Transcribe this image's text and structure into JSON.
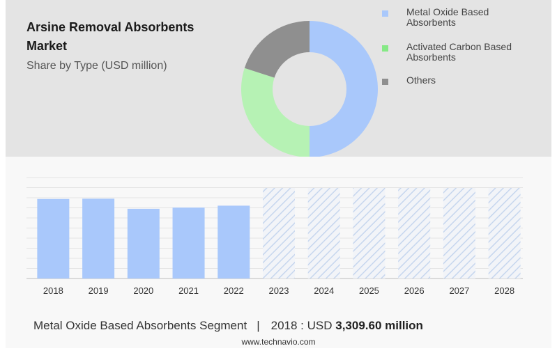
{
  "header": {
    "title": "Arsine Removal Absorbents Market",
    "subtitle": "Share by Type (USD million)"
  },
  "donut": {
    "segments": [
      {
        "label": "Metal Oxide Based Absorbents",
        "share": 50,
        "color": "#a9c8fb"
      },
      {
        "label": "Activated Carbon Based Absorbents",
        "share": 30,
        "color": "#b6f2b4"
      },
      {
        "label": "Others",
        "share": 20,
        "color": "#8f8f8f"
      }
    ]
  },
  "legend": {
    "items": [
      {
        "label": "Metal Oxide Based Absorbents",
        "color": "#a9c8fb"
      },
      {
        "label": "Activated Carbon Based Absorbents",
        "color": "#86e986"
      },
      {
        "label": "Others",
        "color": "#8f8f8f"
      }
    ]
  },
  "chart_data": {
    "type": "bar",
    "categories": [
      "2018",
      "2019",
      "2020",
      "2021",
      "2022",
      "2023",
      "2024",
      "2025",
      "2026",
      "2027",
      "2028"
    ],
    "values": [
      3309.6,
      3320,
      2900,
      2950,
      3030,
      null,
      null,
      null,
      null,
      null,
      null
    ],
    "forecast_categories": [
      "2023",
      "2024",
      "2025",
      "2026",
      "2027",
      "2028"
    ],
    "bar_color": "#a9c8fb",
    "forecast_color": "#c6d6ee",
    "grid": true
  },
  "footer": {
    "segment_label": "Metal Oxide Based Absorbents Segment",
    "separator": "|",
    "year_prefix": "2018 : USD",
    "value": "3,309.60 million",
    "source": "www.technavio.com"
  }
}
